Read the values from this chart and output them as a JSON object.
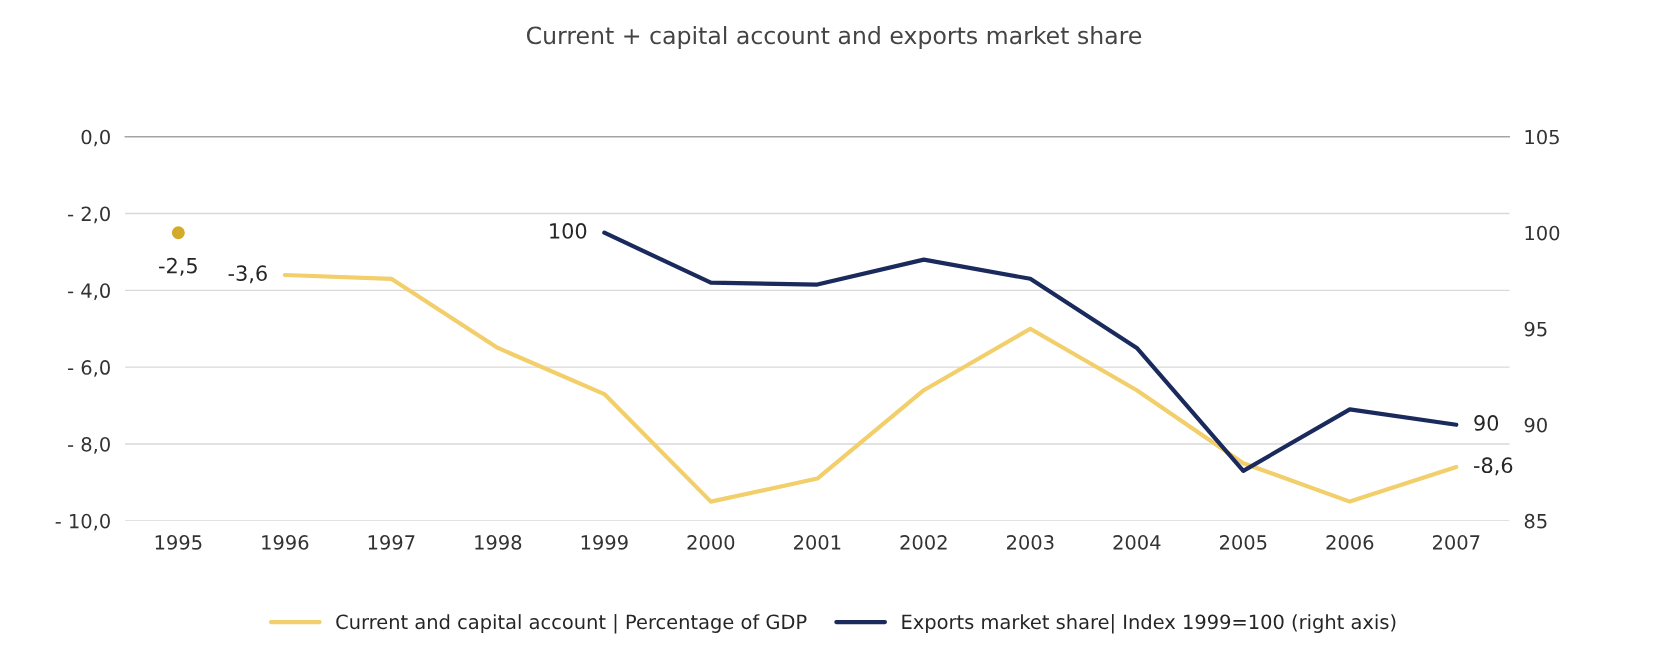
{
  "chart_data": {
    "type": "line",
    "title": "Current + capital account and exports market share",
    "categories": [
      "1995",
      "1996",
      "1997",
      "1998",
      "1999",
      "2000",
      "2001",
      "2002",
      "2003",
      "2004",
      "2005",
      "2006",
      "2007"
    ],
    "series": [
      {
        "type": "scatter",
        "color": "#d4aa2c",
        "marker": "circle",
        "values": [
          -2.5,
          null,
          null,
          null,
          null,
          null,
          null,
          null,
          null,
          null,
          null,
          null,
          null
        ],
        "value_labels": [
          "-2,5",
          null,
          null,
          null,
          null,
          null,
          null,
          null,
          null,
          null,
          null,
          null,
          null
        ]
      },
      {
        "name": "Current and capital account | Percentage of GDP",
        "color": "#f2cf6b",
        "values": [
          null,
          -3.6,
          -3.7,
          -5.5,
          -6.7,
          -9.5,
          -8.9,
          -6.6,
          -5.0,
          -6.6,
          -8.5,
          -9.5,
          -8.6
        ],
        "value_labels": [
          null,
          "-3,6",
          null,
          null,
          null,
          null,
          null,
          null,
          null,
          null,
          null,
          null,
          "-8,6"
        ]
      },
      {
        "name": "Exports market share| Index 1999=100 (right axis)",
        "color": "#1b2a5c",
        "axis": "y2",
        "values": [
          null,
          null,
          null,
          null,
          100,
          97.4,
          97.3,
          98.6,
          97.6,
          94,
          87.6,
          90.8,
          90
        ],
        "value_labels": [
          null,
          null,
          null,
          null,
          "100",
          null,
          null,
          null,
          null,
          null,
          null,
          null,
          "90"
        ]
      }
    ],
    "ylim": [
      -10,
      0
    ],
    "yticks": [
      {
        "value": -10,
        "label": "- 10,0"
      },
      {
        "value": -8,
        "label": "- 8,0"
      },
      {
        "value": -6,
        "label": "- 6,0"
      },
      {
        "value": -4,
        "label": "- 4,0"
      },
      {
        "value": -2,
        "label": "- 2,0"
      },
      {
        "value": 0,
        "label": "0,0"
      }
    ],
    "y2lim": [
      85,
      105
    ],
    "y2ticks": [
      85,
      90,
      95,
      100,
      105
    ],
    "grid": "y",
    "legend": "bottom"
  }
}
